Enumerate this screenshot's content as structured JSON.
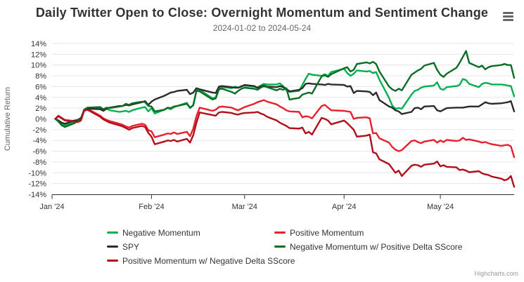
{
  "header": {
    "title": "Daily Twitter Open to Close: Overnight Momentum and Sentiment Change",
    "subtitle": "2024-01-02 to 2024-05-24"
  },
  "credits": {
    "label": "Highcharts.com"
  },
  "chart_data": {
    "type": "line",
    "title": "Daily Twitter Open to Close: Overnight Momentum and Sentiment Change",
    "subtitle": "2024-01-02 to 2024-05-24",
    "xlabel": "",
    "ylabel": "Cumulative Return",
    "ylim": [
      -14,
      14
    ],
    "ytick_step": 2,
    "y_suffix": "%",
    "xlim": [
      "2024-01-01",
      "2024-05-24"
    ],
    "grid": "horizontal",
    "legend_position": "bottom",
    "x_ticks": [
      {
        "label": "Jan '24",
        "date": "2024-01-01"
      },
      {
        "label": "Feb '24",
        "date": "2024-02-01"
      },
      {
        "label": "Mar '24",
        "date": "2024-03-01"
      },
      {
        "label": "Apr '24",
        "date": "2024-04-01"
      },
      {
        "label": "May '24",
        "date": "2024-05-01"
      }
    ],
    "dates": [
      "2024-01-02",
      "2024-01-03",
      "2024-01-04",
      "2024-01-05",
      "2024-01-08",
      "2024-01-09",
      "2024-01-10",
      "2024-01-11",
      "2024-01-12",
      "2024-01-16",
      "2024-01-17",
      "2024-01-18",
      "2024-01-19",
      "2024-01-22",
      "2024-01-23",
      "2024-01-24",
      "2024-01-25",
      "2024-01-26",
      "2024-01-29",
      "2024-01-30",
      "2024-01-31",
      "2024-02-01",
      "2024-02-02",
      "2024-02-05",
      "2024-02-06",
      "2024-02-07",
      "2024-02-08",
      "2024-02-09",
      "2024-02-12",
      "2024-02-13",
      "2024-02-14",
      "2024-02-15",
      "2024-02-16",
      "2024-02-20",
      "2024-02-21",
      "2024-02-22",
      "2024-02-23",
      "2024-02-26",
      "2024-02-27",
      "2024-02-28",
      "2024-02-29",
      "2024-03-01",
      "2024-03-04",
      "2024-03-05",
      "2024-03-06",
      "2024-03-07",
      "2024-03-08",
      "2024-03-11",
      "2024-03-12",
      "2024-03-13",
      "2024-03-14",
      "2024-03-15",
      "2024-03-18",
      "2024-03-19",
      "2024-03-20",
      "2024-03-21",
      "2024-03-22",
      "2024-03-25",
      "2024-03-26",
      "2024-03-27",
      "2024-03-28",
      "2024-04-01",
      "2024-04-02",
      "2024-04-03",
      "2024-04-04",
      "2024-04-05",
      "2024-04-08",
      "2024-04-09",
      "2024-04-10",
      "2024-04-11",
      "2024-04-12",
      "2024-04-15",
      "2024-04-16",
      "2024-04-17",
      "2024-04-18",
      "2024-04-19",
      "2024-04-22",
      "2024-04-23",
      "2024-04-24",
      "2024-04-25",
      "2024-04-26",
      "2024-04-29",
      "2024-04-30",
      "2024-05-01",
      "2024-05-02",
      "2024-05-03",
      "2024-05-06",
      "2024-05-07",
      "2024-05-08",
      "2024-05-09",
      "2024-05-10",
      "2024-05-13",
      "2024-05-14",
      "2024-05-15",
      "2024-05-16",
      "2024-05-17",
      "2024-05-20",
      "2024-05-21",
      "2024-05-22",
      "2024-05-23",
      "2024-05-24"
    ],
    "series": [
      {
        "name": "Negative Momentum",
        "color": "#00b050",
        "values": [
          0,
          -0.4,
          -1.0,
          -1.2,
          -0.6,
          -0.3,
          0.1,
          1.6,
          2.0,
          2.1,
          1.6,
          1.9,
          1.6,
          1.3,
          1.4,
          1.5,
          1.3,
          1.6,
          2.1,
          2.2,
          1.4,
          2.0,
          1.0,
          1.7,
          2.0,
          1.8,
          2.2,
          2.4,
          3.0,
          2.0,
          2.6,
          5.3,
          5.4,
          3.8,
          4.0,
          5.7,
          5.9,
          5.7,
          6.0,
          5.8,
          6.1,
          6.2,
          6.0,
          5.8,
          6.2,
          6.5,
          6.4,
          6.4,
          6.6,
          6.1,
          5.3,
          5.0,
          5.2,
          6.3,
          7.4,
          8.4,
          8.2,
          8.0,
          8.3,
          8.0,
          8.7,
          9.3,
          8.5,
          8.0,
          8.4,
          9.0,
          8.8,
          8.9,
          8.5,
          8.7,
          7.3,
          3.9,
          2.5,
          1.9,
          2.0,
          1.9,
          4.5,
          5.2,
          5.4,
          5.8,
          6.0,
          6.2,
          6.8,
          5.6,
          5.4,
          5.9,
          6.1,
          6.3,
          7.4,
          7.2,
          6.5,
          5.9,
          6.5,
          6.7,
          6.6,
          6.4,
          6.4,
          6.3,
          6.2,
          6.1,
          4.2
        ]
      },
      {
        "name": "Positive Momentum",
        "color": "#e8202e",
        "values": [
          0,
          0.6,
          0.2,
          -0.2,
          -0.4,
          -0.4,
          -0.1,
          1.7,
          1.9,
          0.6,
          0.1,
          -0.2,
          -0.4,
          -0.9,
          -1.1,
          -1.4,
          -1.6,
          -1.3,
          -0.9,
          -1.1,
          -2.1,
          -2.3,
          -3.4,
          -2.9,
          -2.7,
          -2.8,
          -2.5,
          -2.8,
          -2.4,
          -3.2,
          -1.8,
          0.5,
          2.1,
          1.5,
          1.7,
          2.2,
          2.3,
          2.1,
          1.8,
          1.6,
          1.9,
          2.2,
          2.8,
          3.1,
          3.3,
          3.5,
          3.2,
          2.7,
          2.3,
          2.0,
          1.6,
          1.4,
          1.3,
          0.3,
          0.5,
          0.4,
          0.1,
          2.4,
          2.6,
          2.1,
          1.6,
          1.5,
          1.4,
          1.3,
          0.0,
          0.2,
          0.3,
          0.1,
          -2.7,
          -2.6,
          -3.6,
          -4.4,
          -5.2,
          -5.7,
          -6.0,
          -5.8,
          -4.1,
          -4.0,
          -4.3,
          -4.5,
          -4.2,
          -3.9,
          -4.4,
          -4.0,
          -4.3,
          -3.9,
          -4.1,
          -4.0,
          -3.5,
          -3.9,
          -3.8,
          -4.2,
          -4.4,
          -4.3,
          -4.5,
          -4.7,
          -5.0,
          -4.9,
          -4.8,
          -5.1,
          -7.1
        ]
      },
      {
        "name": "SPY",
        "color": "#2b2b2b",
        "values": [
          0,
          -0.3,
          -0.7,
          -0.9,
          -0.3,
          -0.2,
          0.2,
          1.5,
          1.9,
          1.8,
          1.5,
          1.9,
          2.1,
          2.4,
          2.4,
          2.6,
          2.5,
          2.7,
          3.1,
          3.3,
          2.6,
          3.2,
          3.6,
          4.3,
          4.6,
          4.9,
          5.0,
          5.2,
          5.4,
          4.6,
          4.9,
          5.7,
          5.5,
          4.9,
          4.8,
          6.0,
          6.1,
          5.9,
          5.8,
          5.8,
          6.0,
          6.3,
          6.1,
          5.8,
          6.0,
          6.2,
          6.0,
          5.9,
          6.1,
          5.9,
          5.6,
          5.1,
          5.4,
          5.7,
          6.5,
          6.6,
          6.5,
          6.4,
          6.3,
          6.5,
          6.4,
          6.3,
          6.0,
          6.1,
          4.8,
          5.2,
          5.1,
          5.0,
          4.4,
          4.9,
          3.5,
          2.3,
          2.1,
          1.6,
          1.4,
          0.9,
          1.3,
          2.0,
          2.1,
          1.8,
          2.3,
          2.4,
          1.6,
          1.4,
          1.7,
          2.0,
          2.1,
          2.1,
          2.1,
          2.2,
          2.3,
          2.3,
          2.7,
          3.1,
          2.9,
          2.8,
          2.9,
          3.0,
          3.1,
          3.3,
          1.4
        ]
      },
      {
        "name": "Negative Momentum w/ Positive Delta SScore",
        "color": "#0b6d24",
        "values": [
          0,
          -0.5,
          -1.2,
          -1.5,
          -0.8,
          -0.4,
          0.0,
          1.7,
          2.1,
          2.2,
          1.8,
          2.1,
          2.0,
          2.3,
          2.4,
          2.8,
          2.6,
          2.9,
          3.2,
          3.1,
          2.4,
          2.3,
          1.4,
          1.7,
          2.1,
          2.0,
          2.3,
          2.4,
          2.8,
          2.1,
          2.5,
          5.2,
          5.1,
          3.6,
          3.8,
          5.5,
          5.6,
          5.0,
          4.7,
          5.2,
          5.6,
          5.8,
          5.6,
          5.4,
          5.8,
          6.1,
          5.9,
          5.3,
          5.6,
          5.4,
          5.7,
          3.6,
          3.9,
          4.5,
          4.7,
          4.9,
          4.7,
          7.9,
          8.1,
          7.8,
          8.3,
          9.4,
          9.6,
          8.8,
          9.1,
          10.2,
          10.5,
          10.3,
          10.6,
          10.2,
          8.8,
          6.0,
          5.5,
          5.2,
          5.6,
          5.3,
          8.2,
          8.6,
          9.0,
          9.3,
          9.9,
          10.4,
          9.1,
          8.2,
          7.8,
          8.4,
          9.5,
          10.4,
          11.5,
          12.6,
          10.4,
          9.6,
          9.9,
          9.2,
          9.6,
          9.8,
          10.0,
          10.2,
          10.0,
          10.0,
          7.6
        ]
      },
      {
        "name": "Positive Momentum w/ Negative Delta SScore",
        "color": "#b1101b",
        "values": [
          0,
          0.5,
          0.1,
          -0.3,
          -0.5,
          -0.6,
          -0.3,
          1.5,
          1.7,
          0.4,
          -0.1,
          -0.4,
          -0.7,
          -1.2,
          -1.4,
          -1.7,
          -2.0,
          -1.7,
          -1.3,
          -1.5,
          -2.6,
          -3.3,
          -4.7,
          -4.2,
          -4.0,
          -4.1,
          -3.9,
          -4.2,
          -3.7,
          -4.4,
          -3.0,
          -0.7,
          1.2,
          0.7,
          0.6,
          1.2,
          1.3,
          1.1,
          0.9,
          0.8,
          1.0,
          1.1,
          1.2,
          1.3,
          1.0,
          0.8,
          0.4,
          -0.3,
          -0.7,
          -1.0,
          -1.3,
          -1.7,
          -1.8,
          -1.6,
          -2.7,
          -2.4,
          -2.9,
          0.2,
          0.0,
          -0.3,
          -1.0,
          -0.3,
          -0.8,
          -1.4,
          -2.0,
          -3.3,
          -3.1,
          -2.9,
          -6.2,
          -6.4,
          -7.5,
          -8.4,
          -9.2,
          -10.0,
          -9.6,
          -10.6,
          -8.7,
          -8.5,
          -8.6,
          -8.9,
          -8.5,
          -8.3,
          -7.9,
          -8.8,
          -8.6,
          -8.9,
          -9.0,
          -9.5,
          -9.4,
          -9.6,
          -9.9,
          -9.7,
          -10.1,
          -10.3,
          -10.4,
          -10.7,
          -11.1,
          -11.4,
          -11.2,
          -10.6,
          -12.6
        ]
      }
    ]
  }
}
